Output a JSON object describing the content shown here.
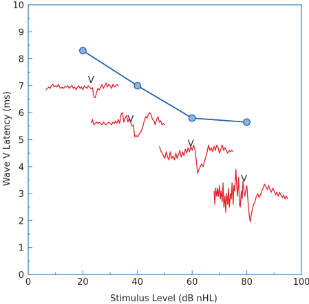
{
  "chart_data": {
    "type": "line",
    "xlabel": "Stimulus Level (dB nHL)",
    "ylabel": "Wave V Latency (ms)",
    "xlim": [
      0,
      100
    ],
    "ylim": [
      0,
      10
    ],
    "x_ticks": [
      "0",
      "20",
      "40",
      "60",
      "80",
      "100"
    ],
    "y_ticks": [
      "0",
      "1",
      "2",
      "3",
      "4",
      "5",
      "6",
      "7",
      "8",
      "9",
      "10"
    ],
    "grid": false,
    "series": [
      {
        "x": [
          20,
          40,
          60,
          80
        ],
        "y": [
          8.3,
          7.0,
          5.8,
          5.65
        ],
        "color": "#1f5fa8",
        "marker_fill": "#8fb0e0"
      }
    ],
    "waveforms": [
      {
        "color": "#e0202a",
        "label": "V",
        "label_pos": [
          23.0,
          7.1
        ],
        "points": [
          [
            6.5,
            6.85
          ],
          [
            7,
            6.9
          ],
          [
            7.5,
            6.95
          ],
          [
            8,
            6.9
          ],
          [
            8.5,
            7.0
          ],
          [
            9,
            7.05
          ],
          [
            9.5,
            6.95
          ],
          [
            10,
            7.0
          ],
          [
            10.5,
            6.95
          ],
          [
            11,
            7.05
          ],
          [
            11.5,
            6.95
          ],
          [
            12,
            6.9
          ],
          [
            12.5,
            6.95
          ],
          [
            13,
            6.9
          ],
          [
            13.5,
            6.98
          ],
          [
            14,
            6.95
          ],
          [
            14.5,
            7.0
          ],
          [
            15,
            6.9
          ],
          [
            15.5,
            6.95
          ],
          [
            16,
            7.02
          ],
          [
            16.5,
            6.9
          ],
          [
            17,
            6.95
          ],
          [
            17.5,
            6.85
          ],
          [
            18,
            6.95
          ],
          [
            18.5,
            7.0
          ],
          [
            19,
            6.9
          ],
          [
            19.5,
            6.95
          ],
          [
            20,
            6.85
          ],
          [
            20.5,
            7.0
          ],
          [
            21,
            6.95
          ],
          [
            21.5,
            6.9
          ],
          [
            22,
            7.0
          ],
          [
            22.5,
            6.95
          ],
          [
            23,
            6.88
          ],
          [
            23.5,
            6.92
          ],
          [
            24,
            6.6
          ],
          [
            24.5,
            6.55
          ],
          [
            25,
            6.75
          ],
          [
            25.5,
            6.9
          ],
          [
            26,
            6.85
          ],
          [
            26.5,
            6.95
          ],
          [
            27,
            7.05
          ],
          [
            27.5,
            6.9
          ],
          [
            28,
            7.0
          ],
          [
            28.5,
            7.1
          ],
          [
            29,
            6.95
          ],
          [
            29.5,
            7.05
          ],
          [
            30,
            7.0
          ],
          [
            30.5,
            6.9
          ],
          [
            31,
            7.05
          ],
          [
            31.5,
            6.95
          ],
          [
            32,
            7.0
          ],
          [
            32.5,
            7.05
          ],
          [
            33,
            7.0
          ]
        ]
      },
      {
        "color": "#e0202a",
        "label": "V",
        "label_pos": [
          37.5,
          5.65
        ],
        "points": [
          [
            23,
            5.6
          ],
          [
            23.5,
            5.75
          ],
          [
            24,
            5.55
          ],
          [
            24.5,
            5.6
          ],
          [
            25,
            5.65
          ],
          [
            25.5,
            5.6
          ],
          [
            26,
            5.65
          ],
          [
            26.5,
            5.6
          ],
          [
            27,
            5.55
          ],
          [
            27.5,
            5.65
          ],
          [
            28,
            5.6
          ],
          [
            28.5,
            5.55
          ],
          [
            29,
            5.6
          ],
          [
            29.5,
            5.65
          ],
          [
            30,
            5.6
          ],
          [
            30.5,
            5.55
          ],
          [
            31,
            5.65
          ],
          [
            31.5,
            5.6
          ],
          [
            32,
            5.7
          ],
          [
            32.5,
            5.6
          ],
          [
            33,
            5.75
          ],
          [
            33.5,
            5.6
          ],
          [
            34,
            5.95
          ],
          [
            34.5,
            6.0
          ],
          [
            35,
            5.65
          ],
          [
            35.5,
            5.8
          ],
          [
            36,
            5.9
          ],
          [
            36.5,
            5.65
          ],
          [
            37,
            5.8
          ],
          [
            37.5,
            5.65
          ],
          [
            38,
            5.5
          ],
          [
            38.5,
            5.55
          ],
          [
            39,
            5.1
          ],
          [
            39.5,
            5.15
          ],
          [
            40,
            5.1
          ],
          [
            40.5,
            5.2
          ],
          [
            41,
            5.25
          ],
          [
            41.5,
            5.35
          ],
          [
            42,
            5.5
          ],
          [
            42.5,
            5.7
          ],
          [
            43,
            5.85
          ],
          [
            43.5,
            5.8
          ],
          [
            44,
            5.95
          ],
          [
            44.5,
            6.0
          ],
          [
            45,
            5.9
          ],
          [
            45.5,
            5.75
          ],
          [
            46,
            5.7
          ],
          [
            46.5,
            5.55
          ],
          [
            47,
            5.75
          ],
          [
            47.5,
            5.85
          ],
          [
            48,
            5.65
          ],
          [
            48.5,
            5.7
          ],
          [
            49,
            5.55
          ],
          [
            49.5,
            5.6
          ],
          [
            50,
            5.55
          ]
        ]
      },
      {
        "color": "#e0202a",
        "label": "V",
        "label_pos": [
          59.5,
          4.75
        ],
        "points": [
          [
            48,
            4.75
          ],
          [
            48.5,
            4.6
          ],
          [
            49,
            4.5
          ],
          [
            49.5,
            4.4
          ],
          [
            50,
            4.3
          ],
          [
            50.5,
            4.55
          ],
          [
            51,
            4.35
          ],
          [
            51.5,
            4.25
          ],
          [
            52,
            4.55
          ],
          [
            52.5,
            4.3
          ],
          [
            53,
            4.4
          ],
          [
            53.5,
            4.25
          ],
          [
            54,
            4.5
          ],
          [
            54.5,
            4.3
          ],
          [
            55,
            4.45
          ],
          [
            55.5,
            4.6
          ],
          [
            56,
            4.35
          ],
          [
            56.5,
            4.55
          ],
          [
            57,
            4.4
          ],
          [
            57.5,
            4.65
          ],
          [
            58,
            4.5
          ],
          [
            58.5,
            4.7
          ],
          [
            59,
            4.55
          ],
          [
            59.5,
            4.75
          ],
          [
            60,
            4.6
          ],
          [
            60.5,
            4.8
          ],
          [
            61,
            4.65
          ],
          [
            61.5,
            4.25
          ],
          [
            62,
            3.75
          ],
          [
            62.5,
            3.9
          ],
          [
            63,
            4.0
          ],
          [
            63.5,
            4.1
          ],
          [
            64,
            4.0
          ],
          [
            64.5,
            4.2
          ],
          [
            65,
            4.35
          ],
          [
            65.5,
            4.55
          ],
          [
            66,
            4.8
          ],
          [
            66.5,
            4.6
          ],
          [
            67,
            4.7
          ],
          [
            67.5,
            4.55
          ],
          [
            68,
            4.75
          ],
          [
            68.5,
            4.6
          ],
          [
            69,
            4.8
          ],
          [
            69.5,
            4.7
          ],
          [
            70,
            4.5
          ],
          [
            70.5,
            4.65
          ],
          [
            71,
            4.8
          ],
          [
            71.5,
            4.6
          ],
          [
            72,
            4.7
          ],
          [
            72.5,
            4.6
          ],
          [
            73,
            4.5
          ],
          [
            73.5,
            4.6
          ],
          [
            74,
            4.55
          ],
          [
            74.5,
            4.6
          ],
          [
            75,
            4.55
          ]
        ]
      },
      {
        "color": "#e0202a",
        "label": "V",
        "label_pos": [
          79.0,
          3.45
        ],
        "points": [
          [
            68,
            3.1
          ],
          [
            68.3,
            2.6
          ],
          [
            68.6,
            3.2
          ],
          [
            69,
            2.9
          ],
          [
            69.3,
            3.2
          ],
          [
            69.6,
            2.9
          ],
          [
            70,
            3.3
          ],
          [
            70.3,
            2.8
          ],
          [
            70.6,
            3.1
          ],
          [
            71,
            2.7
          ],
          [
            71.3,
            3.4
          ],
          [
            71.6,
            2.5
          ],
          [
            72,
            2.9
          ],
          [
            72.3,
            2.3
          ],
          [
            72.6,
            3.0
          ],
          [
            73,
            2.6
          ],
          [
            73.3,
            3.2
          ],
          [
            73.6,
            2.5
          ],
          [
            74,
            3.0
          ],
          [
            74.3,
            2.8
          ],
          [
            74.6,
            3.4
          ],
          [
            75,
            2.6
          ],
          [
            75.3,
            3.3
          ],
          [
            75.6,
            3.1
          ],
          [
            76,
            3.9
          ],
          [
            76.3,
            3.3
          ],
          [
            76.6,
            2.9
          ],
          [
            77,
            3.6
          ],
          [
            77.3,
            2.6
          ],
          [
            77.6,
            2.5
          ],
          [
            78,
            3.1
          ],
          [
            78.3,
            2.8
          ],
          [
            78.6,
            3.45
          ],
          [
            79,
            3.1
          ],
          [
            79.3,
            2.9
          ],
          [
            79.6,
            3.1
          ],
          [
            80,
            3.3
          ],
          [
            80.3,
            2.9
          ],
          [
            80.6,
            2.5
          ],
          [
            81,
            2.1
          ],
          [
            81.3,
            1.95
          ],
          [
            81.6,
            2.2
          ],
          [
            82,
            2.4
          ],
          [
            82.5,
            2.6
          ],
          [
            83,
            2.7
          ],
          [
            83.5,
            2.9
          ],
          [
            84,
            3.0
          ],
          [
            84.5,
            2.85
          ],
          [
            85,
            2.95
          ],
          [
            85.5,
            3.1
          ],
          [
            86,
            3.2
          ],
          [
            86.5,
            3.35
          ],
          [
            87,
            3.25
          ],
          [
            87.5,
            3.15
          ],
          [
            88,
            3.3
          ],
          [
            88.5,
            3.15
          ],
          [
            89,
            3.05
          ],
          [
            89.5,
            3.2
          ],
          [
            90,
            3.1
          ],
          [
            90.5,
            2.95
          ],
          [
            91,
            3.05
          ],
          [
            91.5,
            2.9
          ],
          [
            92,
            3.05
          ],
          [
            92.5,
            2.95
          ],
          [
            93,
            2.85
          ],
          [
            93.5,
            2.95
          ],
          [
            94,
            2.8
          ],
          [
            94.5,
            2.9
          ],
          [
            95,
            2.8
          ]
        ]
      }
    ],
    "colors": {
      "frame": "#2a7bbf",
      "axis_text": "#222222"
    }
  }
}
